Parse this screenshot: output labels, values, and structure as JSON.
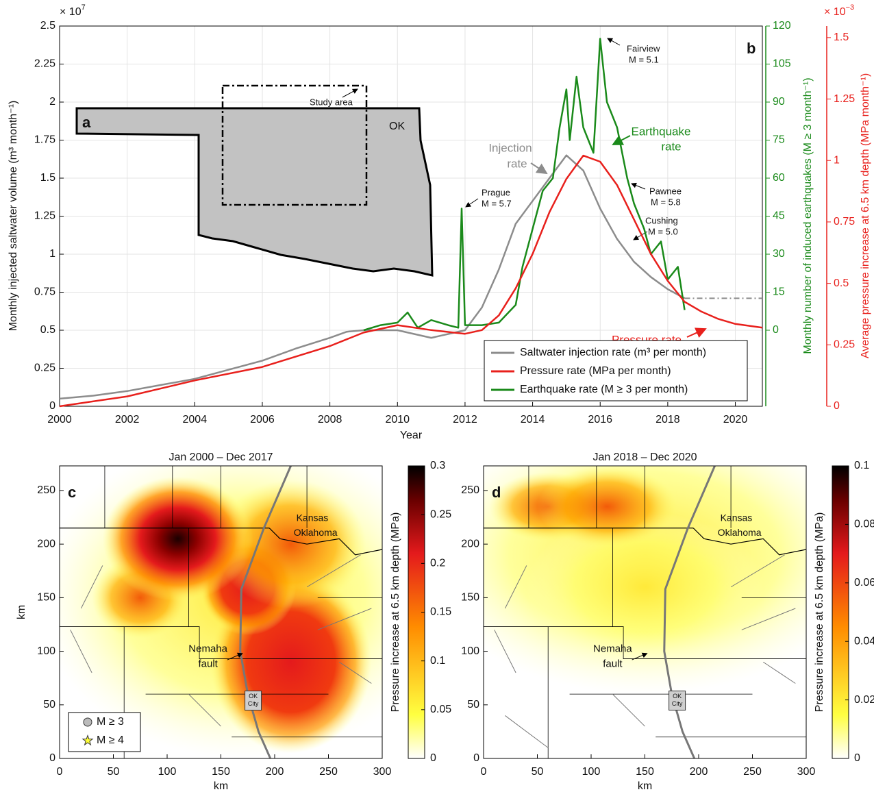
{
  "chart_data": [
    {
      "type": "line",
      "panel_label": "b",
      "inset": {
        "panel_label": "a",
        "region_label": "OK",
        "box_label": "Study area"
      },
      "xlabel": "Year",
      "ylabel": "Monthly injected saltwater volume (m³ month⁻¹)",
      "y_multiplier": "× 10",
      "y_exponent": "7",
      "y2label": "Monthly number of induced earthquakes (M ≥ 3 month⁻¹)",
      "y3label": "Average pressure increase at 6.5 km depth (MPa month⁻¹)",
      "y3_multiplier": "× 10",
      "y3_exponent": "−3",
      "xlim": [
        2000,
        2020.8
      ],
      "xticks": [
        2000,
        2002,
        2004,
        2006,
        2008,
        2010,
        2012,
        2014,
        2016,
        2018,
        2020
      ],
      "ylim": [
        0,
        2.5
      ],
      "yticks": [
        0,
        0.25,
        0.5,
        0.75,
        1,
        1.25,
        1.5,
        1.75,
        2,
        2.25,
        2.5
      ],
      "y2lim": [
        -30,
        120
      ],
      "y2ticks": [
        0,
        15,
        30,
        45,
        60,
        75,
        90,
        105,
        120
      ],
      "y3lim": [
        0,
        1.547
      ],
      "y3ticks": [
        0,
        0.25,
        0.5,
        0.75,
        1,
        1.25,
        1.5
      ],
      "grid": true,
      "legend_loc": "lower right",
      "series": [
        {
          "name": "Saltwater injection rate (m³ per month)",
          "color": "#8c8c8c",
          "axis": "y",
          "x": [
            2000,
            2001,
            2002,
            2003,
            2004,
            2005,
            2006,
            2007,
            2008,
            2008.5,
            2009,
            2010,
            2011,
            2012,
            2012.5,
            2013,
            2013.5,
            2014,
            2014.5,
            2015,
            2015.5,
            2016,
            2016.5,
            2017,
            2017.5,
            2018,
            2018.5
          ],
          "values": [
            0.05,
            0.07,
            0.1,
            0.14,
            0.18,
            0.24,
            0.3,
            0.38,
            0.45,
            0.49,
            0.5,
            0.5,
            0.45,
            0.5,
            0.65,
            0.9,
            1.2,
            1.35,
            1.5,
            1.65,
            1.55,
            1.3,
            1.1,
            0.95,
            0.85,
            0.77,
            0.71
          ]
        },
        {
          "name": "Pressure rate (MPa per month)",
          "color": "#e8201c",
          "axis": "y3",
          "x": [
            2000,
            2002,
            2004,
            2006,
            2008,
            2009,
            2010,
            2011,
            2012,
            2012.5,
            2013,
            2013.5,
            2014,
            2014.5,
            2015,
            2015.5,
            2016,
            2016.5,
            2017,
            2017.5,
            2018,
            2018.5,
            2019,
            2019.5,
            2020,
            2020.8
          ],
          "values": [
            0,
            0.04,
            0.105,
            0.16,
            0.245,
            0.3,
            0.33,
            0.31,
            0.295,
            0.31,
            0.37,
            0.48,
            0.62,
            0.79,
            0.925,
            1.02,
            0.995,
            0.9,
            0.76,
            0.62,
            0.51,
            0.425,
            0.385,
            0.355,
            0.335,
            0.32
          ]
        },
        {
          "name": "Earthquake rate (M ≥ 3 per month)",
          "color": "#1a8a1a",
          "axis": "y2",
          "x": [
            2009,
            2009.5,
            2010,
            2010.3,
            2010.6,
            2011,
            2011.5,
            2011.8,
            2011.9,
            2012,
            2012.5,
            2013,
            2013.5,
            2013.7,
            2014,
            2014.3,
            2014.6,
            2014.8,
            2015,
            2015.1,
            2015.3,
            2015.5,
            2015.8,
            2016,
            2016.2,
            2016.5,
            2016.8,
            2017,
            2017.3,
            2017.5,
            2017.8,
            2018,
            2018.3,
            2018.5
          ],
          "values": [
            0,
            2,
            3,
            7,
            1,
            4,
            2,
            1,
            48,
            2,
            2,
            3,
            10,
            25,
            40,
            55,
            60,
            80,
            95,
            75,
            100,
            80,
            70,
            115,
            90,
            80,
            60,
            50,
            40,
            30,
            35,
            20,
            25,
            8
          ]
        }
      ],
      "projection": {
        "color": "#8c8c8c",
        "x": [
          2018.5,
          2020.8
        ],
        "values": [
          0.71,
          0.71
        ]
      },
      "annotations": [
        {
          "lines": [
            "Fairview",
            "M = 5.1"
          ]
        },
        {
          "lines": [
            "Prague",
            "M = 5.7"
          ]
        },
        {
          "lines": [
            "Pawnee",
            "M = 5.8"
          ]
        },
        {
          "lines": [
            "Cushing",
            "M = 5.0"
          ]
        },
        {
          "lines": [
            "Injection",
            "rate"
          ]
        },
        {
          "lines": [
            "Earthquake",
            "rate"
          ]
        },
        {
          "lines": [
            "Pressure rate"
          ]
        }
      ]
    },
    {
      "type": "heatmap",
      "panel_label": "c",
      "title": "Jan 2000 – Dec 2017",
      "xlabel": "km",
      "ylabel": "km",
      "xlim": [
        0,
        300
      ],
      "xticks": [
        0,
        50,
        100,
        150,
        200,
        250,
        300
      ],
      "ylim": [
        0,
        273
      ],
      "yticks": [
        0,
        50,
        100,
        150,
        200,
        250
      ],
      "colorbar": {
        "label": "Pressure increase at 6.5 km depth (MPa)",
        "lim": [
          0,
          0.3
        ],
        "ticks": [
          0,
          0.05,
          0.1,
          0.15,
          0.2,
          0.25,
          0.3
        ]
      },
      "labels": {
        "fault": [
          "Nemaha",
          "fault"
        ],
        "city": [
          "OK",
          "City"
        ],
        "north": "Kansas",
        "south": "Oklahoma"
      },
      "legend": [
        "M ≥ 3",
        "M ≥ 4"
      ]
    },
    {
      "type": "heatmap",
      "panel_label": "d",
      "title": "Jan 2018 – Dec 2020",
      "xlabel": "km",
      "xlim": [
        0,
        300
      ],
      "xticks": [
        0,
        50,
        100,
        150,
        200,
        250,
        300
      ],
      "ylim": [
        0,
        273
      ],
      "yticks": [
        0,
        50,
        100,
        150,
        200,
        250
      ],
      "colorbar": {
        "label": "Pressure increase at 6.5 km depth (MPa)",
        "lim": [
          0,
          0.1
        ],
        "ticks": [
          0,
          0.02,
          0.04,
          0.06,
          0.08,
          0.1
        ]
      },
      "labels": {
        "fault": [
          "Nemaha",
          "fault"
        ],
        "city": [
          "OK",
          "City"
        ],
        "north": "Kansas",
        "south": "Oklahoma"
      }
    }
  ]
}
